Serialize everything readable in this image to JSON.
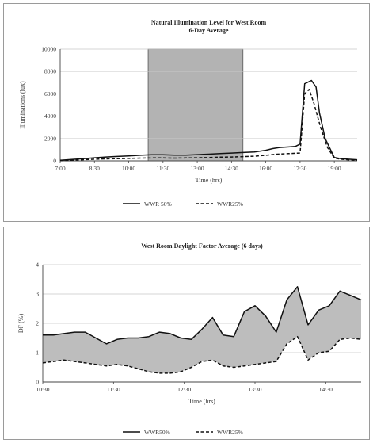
{
  "chart_data": [
    {
      "type": "line",
      "title": "Natural Illumination Level for West Room",
      "subtitle": "6-Day Average",
      "xlabel": "Time (hrs)",
      "ylabel": "Illuminations (lux)",
      "ylim": [
        0,
        10000
      ],
      "yticks": [
        "0",
        "2000",
        "4000",
        "6000",
        "8000",
        "10000"
      ],
      "xticks": [
        "7:00",
        "8:30",
        "10:00",
        "11:30",
        "13:00",
        "14:30",
        "16:00",
        "17:30",
        "19:00"
      ],
      "xlim": [
        7.0,
        20.0
      ],
      "shaded_band": {
        "x_start": 10.85,
        "x_end": 15.0,
        "color": "#b3b3b3"
      },
      "series": [
        {
          "name": "WWR 50%",
          "style": "solid",
          "x": [
            7.0,
            7.5,
            8.0,
            8.5,
            9.0,
            9.5,
            10.0,
            10.5,
            11.0,
            11.5,
            12.0,
            12.5,
            13.0,
            13.5,
            14.0,
            14.5,
            15.0,
            15.5,
            16.0,
            16.3,
            16.6,
            17.0,
            17.3,
            17.5,
            17.7,
            18.0,
            18.2,
            18.35,
            18.6,
            19.0,
            19.3,
            19.6,
            20.0
          ],
          "values": [
            50,
            120,
            200,
            280,
            350,
            400,
            450,
            500,
            550,
            550,
            520,
            520,
            560,
            600,
            650,
            700,
            750,
            800,
            950,
            1100,
            1200,
            1250,
            1300,
            1500,
            6900,
            7200,
            6600,
            4300,
            2000,
            300,
            200,
            150,
            100
          ]
        },
        {
          "name": "WWR25%",
          "style": "dashed",
          "x": [
            7.0,
            7.5,
            8.0,
            8.5,
            9.0,
            9.5,
            10.0,
            10.5,
            11.0,
            11.5,
            12.0,
            12.5,
            13.0,
            13.5,
            14.0,
            14.5,
            15.0,
            15.5,
            16.0,
            16.5,
            17.0,
            17.5,
            17.7,
            17.9,
            18.1,
            18.4,
            18.7,
            19.0,
            19.3,
            19.6,
            20.0
          ],
          "values": [
            20,
            60,
            100,
            150,
            180,
            200,
            220,
            250,
            260,
            260,
            250,
            260,
            280,
            300,
            330,
            350,
            380,
            420,
            500,
            600,
            650,
            700,
            6000,
            6400,
            5200,
            3000,
            1200,
            250,
            150,
            100,
            50
          ]
        }
      ]
    },
    {
      "type": "area",
      "title": "West Room Daylight Factor Average (6 days)",
      "xlabel": "Time (hrs)",
      "ylabel": "DF (%)",
      "ylim": [
        0,
        4
      ],
      "yticks": [
        "0",
        "1",
        "2",
        "3",
        "4"
      ],
      "xticks": [
        "10:30",
        "11:30",
        "12:30",
        "13:30",
        "14:30"
      ],
      "xlim": [
        10.5,
        15.0
      ],
      "fill_between_color": "#bdbdbd",
      "series": [
        {
          "name": "WWR50%",
          "style": "solid",
          "x": [
            10.5,
            10.65,
            10.8,
            10.95,
            11.1,
            11.25,
            11.4,
            11.55,
            11.7,
            11.85,
            12.0,
            12.15,
            12.3,
            12.45,
            12.6,
            12.75,
            12.9,
            13.05,
            13.2,
            13.35,
            13.5,
            13.65,
            13.8,
            13.95,
            14.1,
            14.25,
            14.4,
            14.55,
            14.7,
            14.85,
            15.0
          ],
          "values": [
            1.6,
            1.6,
            1.65,
            1.7,
            1.7,
            1.5,
            1.3,
            1.45,
            1.5,
            1.5,
            1.55,
            1.7,
            1.65,
            1.5,
            1.45,
            1.8,
            2.2,
            1.6,
            1.55,
            2.4,
            2.6,
            2.25,
            1.7,
            2.8,
            3.25,
            1.95,
            2.45,
            2.6,
            3.1,
            2.95,
            2.8
          ]
        },
        {
          "name": "WWR25%",
          "style": "dashed",
          "x": [
            10.5,
            10.65,
            10.8,
            10.95,
            11.1,
            11.25,
            11.4,
            11.55,
            11.7,
            11.85,
            12.0,
            12.15,
            12.3,
            12.45,
            12.6,
            12.75,
            12.9,
            13.05,
            13.2,
            13.35,
            13.5,
            13.65,
            13.8,
            13.95,
            14.1,
            14.25,
            14.4,
            14.55,
            14.7,
            14.85,
            15.0
          ],
          "values": [
            0.65,
            0.7,
            0.75,
            0.7,
            0.65,
            0.6,
            0.55,
            0.6,
            0.55,
            0.45,
            0.35,
            0.3,
            0.3,
            0.35,
            0.5,
            0.7,
            0.75,
            0.55,
            0.5,
            0.55,
            0.6,
            0.65,
            0.7,
            1.3,
            1.55,
            0.75,
            1.0,
            1.05,
            1.45,
            1.5,
            1.45
          ]
        }
      ]
    }
  ]
}
